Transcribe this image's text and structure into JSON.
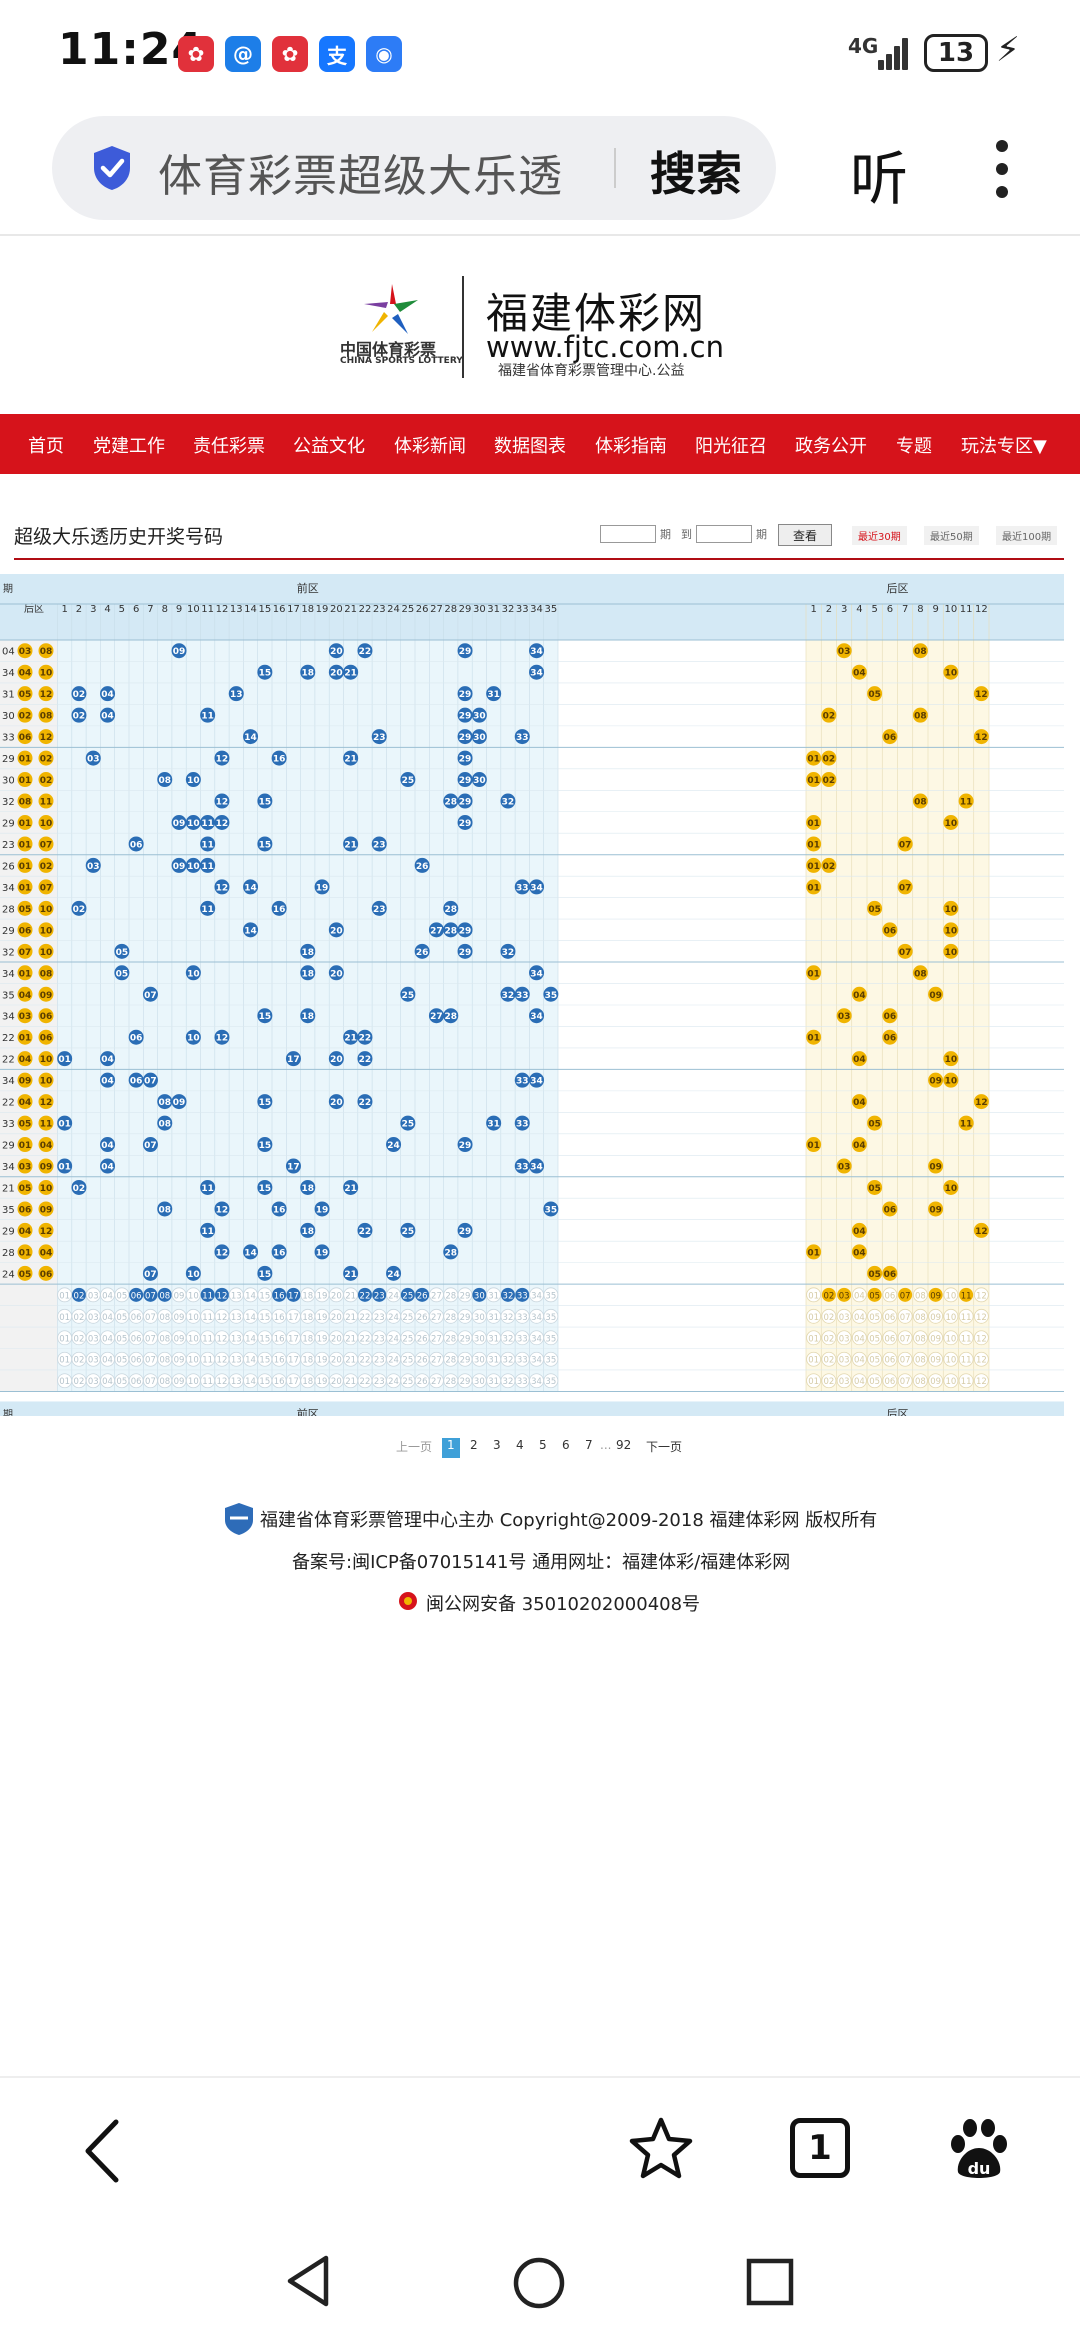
{
  "status_bar": {
    "time": "11:24",
    "network": "4G",
    "battery": "13",
    "notifications": [
      {
        "icon": "huawei-icon",
        "color": "#e1313b",
        "glyph": "✿"
      },
      {
        "icon": "browser-icon",
        "color": "#1d7ee8",
        "glyph": "@"
      },
      {
        "icon": "huawei-icon",
        "color": "#e1313b",
        "glyph": "✿"
      },
      {
        "icon": "alipay-icon",
        "color": "#1677ff",
        "glyph": "支"
      },
      {
        "icon": "app-icon",
        "color": "#2d7cf6",
        "glyph": "◉"
      }
    ]
  },
  "browser": {
    "url_text": "体育彩票超级大乐透",
    "search_label": "搜索",
    "listen_label": "听",
    "tab_count": "1"
  },
  "site": {
    "logo_cn": "中国体育彩票",
    "logo_en": "CHINA SPORTS LOTTERY",
    "title": "福建体彩网",
    "url": "www.fjtc.com.cn",
    "subtitle": "福建省体育彩票管理中心.公益",
    "nav": [
      "首页",
      "党建工作",
      "责任彩票",
      "公益文化",
      "体彩新闻",
      "数据图表",
      "体彩指南",
      "阳光征召",
      "政务公开",
      "专题",
      "玩法专区▼"
    ]
  },
  "section": {
    "title": "超级大乐透历史开奖号码",
    "query_unit_1": "期",
    "query_to": "到",
    "query_unit_2": "期",
    "query_button": "查看",
    "ranges": [
      "最近30期",
      "最近50期",
      "最近100期"
    ]
  },
  "chart_data": {
    "type": "table",
    "header": {
      "front_label": "前区",
      "back_label": "后区",
      "left_label": "后区",
      "left_first": "期"
    },
    "front_numbers": [
      "1",
      "2",
      "3",
      "4",
      "5",
      "6",
      "7",
      "8",
      "9",
      "10",
      "11",
      "12",
      "13",
      "14",
      "15",
      "16",
      "17",
      "18",
      "19",
      "20",
      "21",
      "22",
      "23",
      "24",
      "25",
      "26",
      "27",
      "28",
      "29",
      "30",
      "31",
      "32",
      "33",
      "34",
      "35"
    ],
    "back_numbers": [
      "1",
      "2",
      "3",
      "4",
      "5",
      "6",
      "7",
      "8",
      "9",
      "10",
      "11",
      "12"
    ],
    "draws": [
      {
        "left": [
          "04",
          "03",
          "08"
        ],
        "front": [
          9,
          20,
          22,
          29,
          34
        ],
        "back": [
          3,
          8
        ]
      },
      {
        "left": [
          "34",
          "04",
          "10"
        ],
        "front": [
          15,
          18,
          20,
          21,
          34
        ],
        "back": [
          4,
          10
        ]
      },
      {
        "left": [
          "31",
          "05",
          "12"
        ],
        "front": [
          2,
          4,
          13,
          29,
          31
        ],
        "back": [
          5,
          12
        ]
      },
      {
        "left": [
          "30",
          "02",
          "08"
        ],
        "front": [
          2,
          4,
          11,
          29,
          30
        ],
        "back": [
          2,
          8
        ]
      },
      {
        "left": [
          "33",
          "06",
          "12"
        ],
        "front": [
          14,
          23,
          29,
          30,
          33
        ],
        "back": [
          6,
          12
        ]
      },
      {
        "left": [
          "29",
          "01",
          "02"
        ],
        "front": [
          3,
          12,
          16,
          21,
          29
        ],
        "back": [
          1,
          2
        ]
      },
      {
        "left": [
          "30",
          "01",
          "02"
        ],
        "front": [
          8,
          10,
          25,
          29,
          30
        ],
        "back": [
          1,
          2
        ]
      },
      {
        "left": [
          "32",
          "08",
          "11"
        ],
        "front": [
          12,
          15,
          28,
          29,
          32
        ],
        "back": [
          8,
          11
        ]
      },
      {
        "left": [
          "29",
          "01",
          "10"
        ],
        "front": [
          9,
          10,
          11,
          12,
          29
        ],
        "back": [
          1,
          10
        ]
      },
      {
        "left": [
          "23",
          "01",
          "07"
        ],
        "front": [
          6,
          11,
          15,
          21,
          23
        ],
        "back": [
          1,
          7
        ]
      },
      {
        "left": [
          "26",
          "01",
          "02"
        ],
        "front": [
          3,
          9,
          10,
          11,
          26
        ],
        "back": [
          1,
          2
        ]
      },
      {
        "left": [
          "34",
          "01",
          "07"
        ],
        "front": [
          12,
          14,
          19,
          33,
          34
        ],
        "back": [
          1,
          7
        ]
      },
      {
        "left": [
          "28",
          "05",
          "10"
        ],
        "front": [
          2,
          11,
          16,
          23,
          28
        ],
        "back": [
          5,
          10
        ]
      },
      {
        "left": [
          "29",
          "06",
          "10"
        ],
        "front": [
          14,
          20,
          27,
          28,
          29
        ],
        "back": [
          6,
          10
        ]
      },
      {
        "left": [
          "32",
          "07",
          "10"
        ],
        "front": [
          5,
          18,
          26,
          29,
          32
        ],
        "back": [
          7,
          10
        ]
      },
      {
        "left": [
          "34",
          "01",
          "08"
        ],
        "front": [
          5,
          10,
          18,
          20,
          34
        ],
        "back": [
          1,
          8
        ]
      },
      {
        "left": [
          "35",
          "04",
          "09"
        ],
        "front": [
          7,
          25,
          32,
          33,
          35
        ],
        "back": [
          4,
          9
        ]
      },
      {
        "left": [
          "34",
          "03",
          "06"
        ],
        "front": [
          15,
          18,
          27,
          28,
          34
        ],
        "back": [
          3,
          6
        ]
      },
      {
        "left": [
          "22",
          "01",
          "06"
        ],
        "front": [
          6,
          10,
          12,
          21,
          22
        ],
        "back": [
          1,
          6
        ]
      },
      {
        "left": [
          "22",
          "04",
          "10"
        ],
        "front": [
          1,
          4,
          17,
          20,
          22
        ],
        "back": [
          4,
          10
        ]
      },
      {
        "left": [
          "34",
          "09",
          "10"
        ],
        "front": [
          4,
          6,
          7,
          33,
          34
        ],
        "back": [
          9,
          10
        ]
      },
      {
        "left": [
          "22",
          "04",
          "12"
        ],
        "front": [
          8,
          9,
          15,
          20,
          22
        ],
        "back": [
          4,
          12
        ]
      },
      {
        "left": [
          "33",
          "05",
          "11"
        ],
        "front": [
          1,
          8,
          25,
          31,
          33
        ],
        "back": [
          5,
          11
        ]
      },
      {
        "left": [
          "29",
          "01",
          "04"
        ],
        "front": [
          4,
          7,
          15,
          24,
          29
        ],
        "back": [
          1,
          4
        ]
      },
      {
        "left": [
          "34",
          "03",
          "09"
        ],
        "front": [
          1,
          4,
          17,
          33,
          34
        ],
        "back": [
          3,
          9
        ]
      },
      {
        "left": [
          "21",
          "05",
          "10"
        ],
        "front": [
          2,
          11,
          15,
          18,
          21
        ],
        "back": [
          5,
          10
        ]
      },
      {
        "left": [
          "35",
          "06",
          "09"
        ],
        "front": [
          8,
          12,
          16,
          19,
          35
        ],
        "back": [
          6,
          9
        ]
      },
      {
        "left": [
          "29",
          "04",
          "12"
        ],
        "front": [
          11,
          18,
          22,
          25,
          29
        ],
        "back": [
          4,
          12
        ]
      },
      {
        "left": [
          "28",
          "01",
          "04"
        ],
        "front": [
          12,
          14,
          16,
          19,
          28
        ],
        "back": [
          1,
          4
        ]
      },
      {
        "left": [
          "24",
          "05",
          "06"
        ],
        "front": [
          7,
          10,
          15,
          21,
          24
        ],
        "back": [
          5,
          6
        ]
      }
    ],
    "highlight_row": {
      "front": [
        2,
        6,
        7,
        8,
        11,
        12,
        16,
        17,
        22,
        23,
        25,
        26,
        30,
        32,
        33
      ],
      "back": [
        2,
        3,
        5,
        7,
        9,
        11
      ]
    },
    "blank_rows": 4
  },
  "pagination": {
    "prev": "上一页",
    "pages": [
      "1",
      "2",
      "3",
      "4",
      "5",
      "6",
      "7"
    ],
    "ellipsis": "...",
    "last": "92",
    "next": "下一页",
    "current": "1"
  },
  "footer": {
    "line1": "福建省体育彩票管理中心主办 Copyright@2009-2018 福建体彩网 版权所有",
    "line2": "备案号:闽ICP备07015141号    通用网址：福建体彩/福建体彩网",
    "line3": "闽公网安备 35010202000408号"
  },
  "colors": {
    "nav_red": "#d6131b",
    "front_ball": "#2a6db5",
    "back_ball": "#f0b400",
    "front_bg": "#eaf6fb",
    "back_bg": "#fdf8e4",
    "header_bg": "#d4e9f5"
  }
}
